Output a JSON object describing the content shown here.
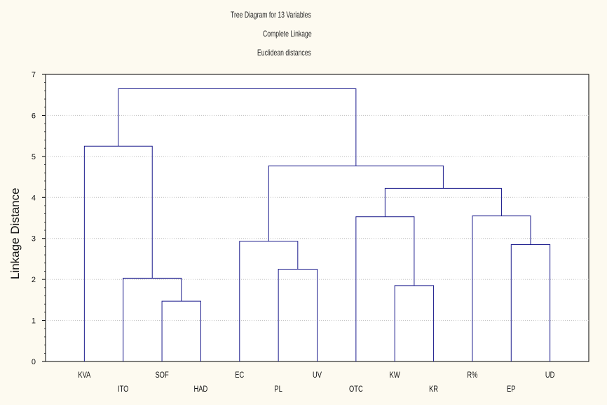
{
  "chart_data": {
    "type": "dendrogram",
    "title": "Tree Diagram for 13 Variables",
    "subtitle_1": "Complete Linkage",
    "subtitle_2": "Euclidean distances",
    "ylabel": "Linkage Distance",
    "ylim": [
      0,
      7
    ],
    "yticks": [
      "0",
      "1",
      "2",
      "3",
      "4",
      "5",
      "6",
      "7"
    ],
    "grid": true,
    "leaves": [
      "KVA",
      "ITO",
      "SOF",
      "HAD",
      "EC",
      "PL",
      "UV",
      "OTC",
      "KW",
      "KR",
      "R%",
      "EP",
      "UD"
    ],
    "merges": [
      {
        "left": "SOF",
        "right": "HAD",
        "height": 1.47
      },
      {
        "left": "ITO",
        "right": "SOF+HAD",
        "height": 2.03
      },
      {
        "left": "KVA",
        "right": "ITO+SOF+HAD",
        "height": 5.25
      },
      {
        "left": "PL",
        "right": "UV",
        "height": 2.25
      },
      {
        "left": "EC",
        "right": "PL+UV",
        "height": 2.93
      },
      {
        "left": "KW",
        "right": "KR",
        "height": 1.85
      },
      {
        "left": "OTC",
        "right": "KW+KR",
        "height": 3.53
      },
      {
        "left": "EP",
        "right": "UD",
        "height": 2.85
      },
      {
        "left": "R%",
        "right": "EP+UD",
        "height": 3.55
      },
      {
        "left": "OTC+KW+KR",
        "right": "R%+EP+UD",
        "height": 4.22
      },
      {
        "left": "EC+PL+UV",
        "right": "OTC+KW+KR+R%+EP+UD",
        "height": 4.77
      },
      {
        "left": "KVA+ITO+SOF+HAD",
        "right": "EC+PL+UV+OTC+KW+KR+R%+EP+UD",
        "height": 6.65
      }
    ]
  },
  "colors": {
    "dendrogram_line": "#1a1a8c",
    "grid": "#bdbdbd",
    "axis": "#000000",
    "background": "#fdfaf0",
    "plot_background": "#ffffff"
  }
}
